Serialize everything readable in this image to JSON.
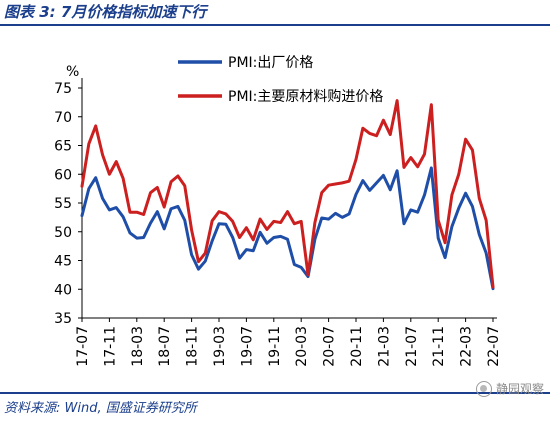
{
  "header": {
    "title": "图表 3:  7月价格指标加速下行"
  },
  "footer": {
    "source": "资料来源:  Wind,  国盛证券研究所",
    "watermark": "静园观察"
  },
  "colors": {
    "blue": "#1f4ea8",
    "red": "#cc1f1f",
    "frame": "#1b3f8c"
  },
  "chart_data": {
    "type": "line",
    "title": "",
    "ylabel": "%",
    "ylim": [
      35,
      75
    ],
    "yticks": [
      35,
      40,
      45,
      50,
      55,
      60,
      65,
      70,
      75
    ],
    "grid": false,
    "legend_position": "top-center",
    "x_tick_labels": [
      "17-07",
      "17-11",
      "18-03",
      "18-07",
      "18-11",
      "19-03",
      "19-07",
      "19-11",
      "20-03",
      "20-07",
      "20-11",
      "21-03",
      "21-07",
      "21-11",
      "22-03",
      "22-07"
    ],
    "x": [
      "17-07",
      "17-08",
      "17-09",
      "17-10",
      "17-11",
      "17-12",
      "18-01",
      "18-02",
      "18-03",
      "18-04",
      "18-05",
      "18-06",
      "18-07",
      "18-08",
      "18-09",
      "18-10",
      "18-11",
      "18-12",
      "19-01",
      "19-02",
      "19-03",
      "19-04",
      "19-05",
      "19-06",
      "19-07",
      "19-08",
      "19-09",
      "19-10",
      "19-11",
      "19-12",
      "20-01",
      "20-02",
      "20-03",
      "20-04",
      "20-05",
      "20-06",
      "20-07",
      "20-08",
      "20-09",
      "20-10",
      "20-11",
      "20-12",
      "21-01",
      "21-02",
      "21-03",
      "21-04",
      "21-05",
      "21-06",
      "21-07",
      "21-08",
      "21-09",
      "21-10",
      "21-11",
      "21-12",
      "22-01",
      "22-02",
      "22-03",
      "22-04",
      "22-05",
      "22-06",
      "22-07"
    ],
    "series": [
      {
        "name": "PMI:出厂价格",
        "color": "#1f4ea8",
        "values": [
          52.8,
          57.5,
          59.4,
          55.8,
          53.8,
          54.2,
          52.6,
          49.8,
          48.9,
          49.0,
          51.5,
          53.5,
          50.5,
          54.0,
          54.4,
          52.0,
          46.0,
          43.5,
          44.9,
          48.4,
          51.4,
          51.3,
          49.0,
          45.4,
          46.9,
          46.7,
          49.9,
          48.0,
          49.0,
          49.2,
          48.7,
          44.3,
          43.8,
          42.2,
          48.7,
          52.4,
          52.2,
          53.2,
          52.5,
          53.1,
          56.5,
          58.9,
          57.2,
          58.5,
          59.8,
          57.3,
          60.6,
          51.4,
          53.8,
          53.4,
          56.4,
          61.1,
          48.9,
          45.5,
          50.9,
          54.1,
          56.7,
          54.4,
          49.5,
          46.3,
          40.1
        ]
      },
      {
        "name": "PMI:主要原材料购进价格",
        "color": "#cc1f1f",
        "values": [
          57.9,
          65.3,
          68.4,
          63.4,
          60.0,
          62.2,
          59.3,
          53.4,
          53.4,
          53.0,
          56.8,
          57.7,
          54.3,
          58.7,
          59.7,
          58.0,
          50.3,
          44.8,
          46.3,
          51.9,
          53.5,
          53.1,
          51.8,
          49.0,
          50.7,
          48.6,
          52.2,
          50.4,
          51.8,
          51.6,
          53.5,
          51.4,
          51.8,
          42.5,
          51.6,
          56.8,
          58.1,
          58.3,
          58.5,
          58.8,
          62.6,
          68.0,
          67.1,
          66.7,
          69.4,
          66.9,
          72.8,
          61.2,
          62.9,
          61.3,
          63.5,
          72.1,
          52.0,
          48.1,
          56.4,
          60.0,
          66.1,
          64.2,
          55.8,
          52.0,
          40.4
        ]
      }
    ]
  }
}
